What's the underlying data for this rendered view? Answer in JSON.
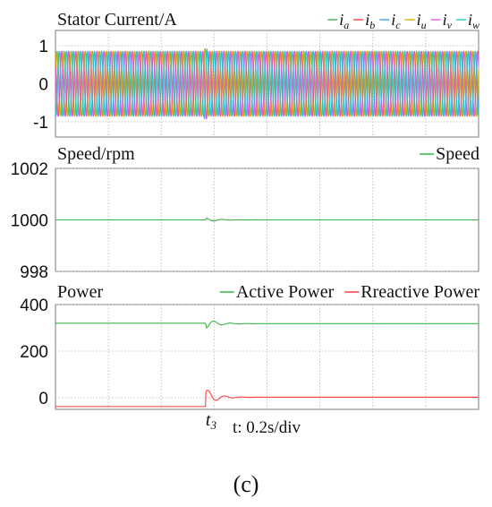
{
  "figure_label": "(c)",
  "x_axis": {
    "label": "t: 0.2s/div",
    "divisions": 8,
    "event_marker": "t3"
  },
  "chart_data": [
    {
      "type": "line",
      "title": "Stator Current/A",
      "ylim": [
        -1.4,
        1.4
      ],
      "yticks": [
        {
          "v": 1,
          "t": "1"
        },
        {
          "v": 0,
          "t": "0"
        },
        {
          "v": -1,
          "t": "-1"
        }
      ],
      "grid": true,
      "legend_position": "top-right",
      "amplitude": 0.85,
      "cycles_visible": 60,
      "series": [
        {
          "name": "i",
          "sub": "a",
          "color": "#3cb44b",
          "phase_deg": 0
        },
        {
          "name": "i",
          "sub": "b",
          "color": "#ff3b3b",
          "phase_deg": 120
        },
        {
          "name": "i",
          "sub": "c",
          "color": "#3a9ff5",
          "phase_deg": 240
        },
        {
          "name": "i",
          "sub": "u",
          "color": "#e0a800",
          "phase_deg": 30
        },
        {
          "name": "i",
          "sub": "v",
          "color": "#e857e8",
          "phase_deg": 150
        },
        {
          "name": "i",
          "sub": "w",
          "color": "#20c8c8",
          "phase_deg": 270
        }
      ]
    },
    {
      "type": "line",
      "title": "Speed/rpm",
      "ylim": [
        998,
        1002
      ],
      "yticks": [
        {
          "v": 1002,
          "t": "1002"
        },
        {
          "v": 1000,
          "t": "1000"
        },
        {
          "v": 998,
          "t": "998"
        }
      ],
      "grid": true,
      "legend_position": "top-right",
      "series": [
        {
          "name": "Speed",
          "color": "#3cb44b",
          "steady": 1000,
          "overshoot": 0.08
        }
      ]
    },
    {
      "type": "line",
      "title": "Power",
      "ylim": [
        -50,
        400
      ],
      "yticks": [
        {
          "v": 400,
          "t": "400"
        },
        {
          "v": 200,
          "t": "200"
        },
        {
          "v": 0,
          "t": "0"
        }
      ],
      "grid": true,
      "legend_position": "top-right",
      "series": [
        {
          "name": "Active Power",
          "color": "#3cb44b",
          "before": 320,
          "after": 318,
          "overshoot": 22
        },
        {
          "name": "Rreactive Power",
          "color": "#ff3b3b",
          "before": -38,
          "after": 2,
          "overshoot": 38
        }
      ]
    }
  ]
}
